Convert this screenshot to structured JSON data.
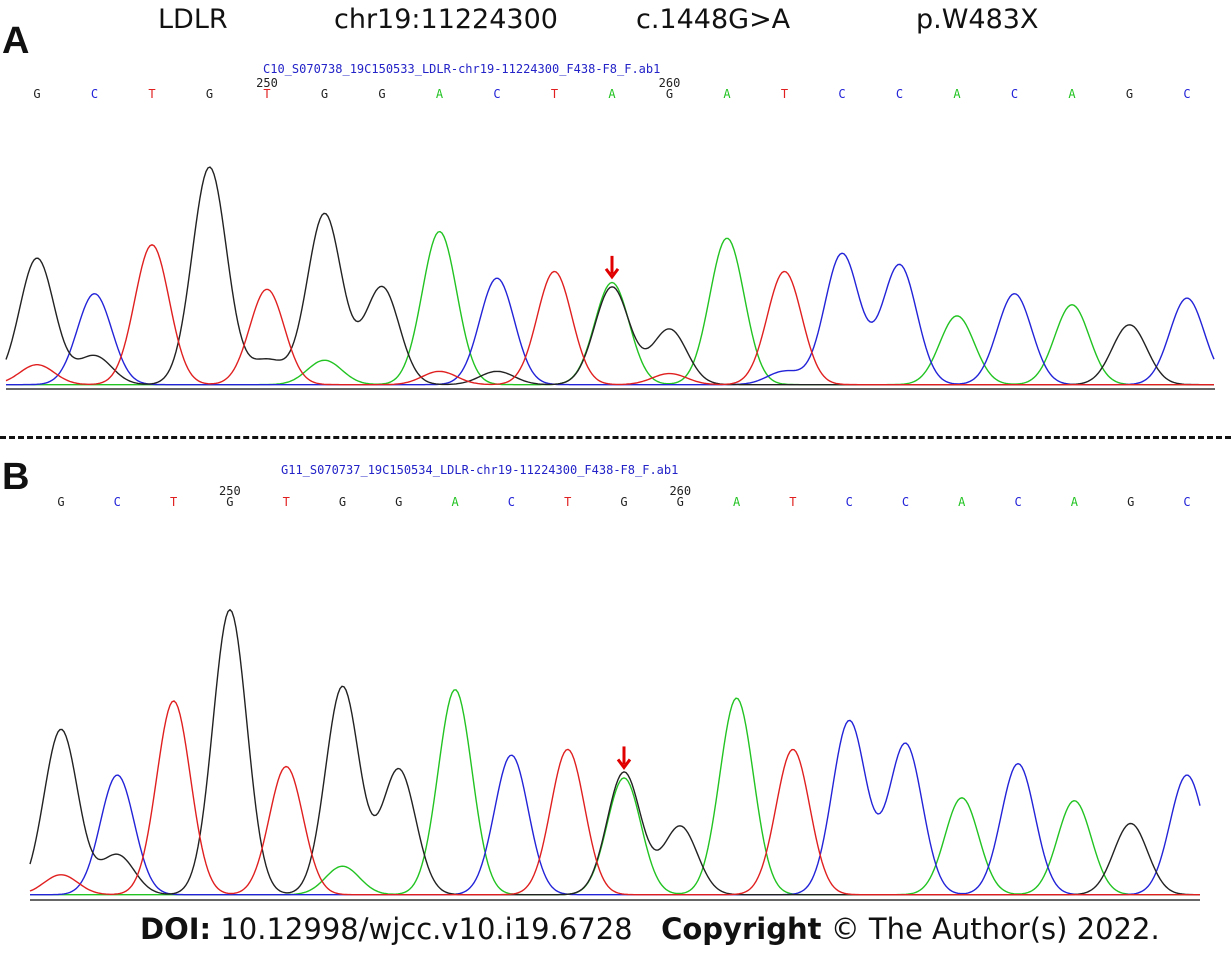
{
  "header": {
    "gene": "LDLR",
    "position": "chr19:11224300",
    "cdna": "c.1448G>A",
    "protein": "p.W483X"
  },
  "footer": {
    "doi_label": "DOI:",
    "doi_value": "10.12998/wjcc.v10.i19.6728",
    "copyright_label": "Copyright",
    "copyright_text": "© The Author(s) 2022."
  },
  "colors": {
    "A": "#22c322",
    "C": "#2323d8",
    "G": "#222222",
    "T": "#e02020",
    "arrow": "#e00000"
  },
  "chart_data": [
    {
      "type": "line",
      "panel": "A",
      "file": "C10_S070738_19C150533_LDLR-chr19-11224300_F438-F8_F.ab1",
      "ticks": [
        {
          "value": "250",
          "base_index": 4
        },
        {
          "value": "260",
          "base_index": 11
        }
      ],
      "bases": [
        "G",
        "C",
        "T",
        "G",
        "T",
        "G",
        "G",
        "A",
        "C",
        "T",
        "A",
        "G",
        "A",
        "T",
        "C",
        "C",
        "A",
        "C",
        "A",
        "G",
        "C"
      ],
      "peaks": [
        {
          "base": "G",
          "height": 0.57,
          "secondary": [
            [
              "T",
              0.09
            ]
          ]
        },
        {
          "base": "C",
          "height": 0.41,
          "secondary": [
            [
              "G",
              0.13
            ]
          ]
        },
        {
          "base": "T",
          "height": 0.63,
          "secondary": []
        },
        {
          "base": "G",
          "height": 0.98,
          "secondary": []
        },
        {
          "base": "T",
          "height": 0.43,
          "secondary": [
            [
              "G",
              0.11
            ]
          ]
        },
        {
          "base": "G",
          "height": 0.77,
          "secondary": [
            [
              "A",
              0.11
            ]
          ]
        },
        {
          "base": "G",
          "height": 0.44,
          "secondary": []
        },
        {
          "base": "A",
          "height": 0.69,
          "secondary": [
            [
              "T",
              0.06
            ]
          ]
        },
        {
          "base": "C",
          "height": 0.48,
          "secondary": [
            [
              "G",
              0.06
            ]
          ]
        },
        {
          "base": "T",
          "height": 0.51,
          "secondary": []
        },
        {
          "base": "A",
          "height": 0.46,
          "secondary": [
            [
              "G",
              0.44
            ]
          ]
        },
        {
          "base": "G",
          "height": 0.25,
          "secondary": [
            [
              "T",
              0.05
            ]
          ]
        },
        {
          "base": "A",
          "height": 0.66,
          "secondary": []
        },
        {
          "base": "T",
          "height": 0.51,
          "secondary": [
            [
              "C",
              0.06
            ]
          ]
        },
        {
          "base": "C",
          "height": 0.59,
          "secondary": []
        },
        {
          "base": "C",
          "height": 0.54,
          "secondary": []
        },
        {
          "base": "A",
          "height": 0.31,
          "secondary": []
        },
        {
          "base": "C",
          "height": 0.41,
          "secondary": []
        },
        {
          "base": "A",
          "height": 0.36,
          "secondary": []
        },
        {
          "base": "G",
          "height": 0.27,
          "secondary": []
        },
        {
          "base": "C",
          "height": 0.39,
          "secondary": []
        }
      ],
      "mutation_base_index": 10
    },
    {
      "type": "line",
      "panel": "B",
      "file": "G11_S070737_19C150534_LDLR-chr19-11224300_F438-F8_F.ab1",
      "ticks": [
        {
          "value": "250",
          "base_index": 3
        },
        {
          "value": "260",
          "base_index": 11
        }
      ],
      "bases": [
        "G",
        "C",
        "T",
        "G",
        "T",
        "G",
        "G",
        "A",
        "C",
        "T",
        "G",
        "G",
        "A",
        "T",
        "C",
        "C",
        "A",
        "C",
        "A",
        "G",
        "C"
      ],
      "peaks": [
        {
          "base": "G",
          "height": 0.58,
          "secondary": [
            [
              "T",
              0.07
            ]
          ]
        },
        {
          "base": "C",
          "height": 0.42,
          "secondary": [
            [
              "G",
              0.14
            ]
          ]
        },
        {
          "base": "T",
          "height": 0.68,
          "secondary": []
        },
        {
          "base": "G",
          "height": 1.0,
          "secondary": []
        },
        {
          "base": "T",
          "height": 0.45,
          "secondary": []
        },
        {
          "base": "G",
          "height": 0.73,
          "secondary": [
            [
              "A",
              0.1
            ]
          ]
        },
        {
          "base": "G",
          "height": 0.44,
          "secondary": []
        },
        {
          "base": "A",
          "height": 0.72,
          "secondary": []
        },
        {
          "base": "C",
          "height": 0.49,
          "secondary": []
        },
        {
          "base": "T",
          "height": 0.51,
          "secondary": []
        },
        {
          "base": "G",
          "height": 0.43,
          "secondary": [
            [
              "A",
              0.41
            ]
          ]
        },
        {
          "base": "G",
          "height": 0.24,
          "secondary": []
        },
        {
          "base": "A",
          "height": 0.69,
          "secondary": []
        },
        {
          "base": "T",
          "height": 0.51,
          "secondary": []
        },
        {
          "base": "C",
          "height": 0.61,
          "secondary": []
        },
        {
          "base": "C",
          "height": 0.53,
          "secondary": []
        },
        {
          "base": "A",
          "height": 0.34,
          "secondary": []
        },
        {
          "base": "C",
          "height": 0.46,
          "secondary": []
        },
        {
          "base": "A",
          "height": 0.33,
          "secondary": []
        },
        {
          "base": "G",
          "height": 0.25,
          "secondary": []
        },
        {
          "base": "C",
          "height": 0.42,
          "secondary": []
        }
      ],
      "mutation_base_index": 10
    }
  ]
}
